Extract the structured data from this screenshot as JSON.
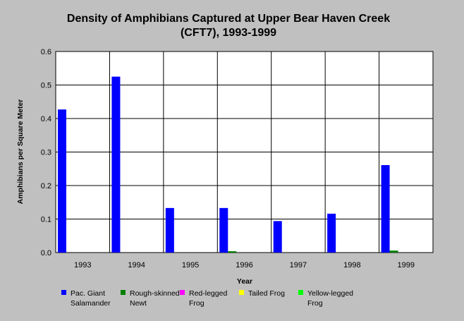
{
  "chart_data": {
    "type": "bar",
    "title_lines": [
      "Density of Amphibians Captured at Upper Bear Haven Creek",
      "(CFT7), 1993-1999"
    ],
    "xlabel": "Year",
    "ylabel": "Amphibians per Square Meter",
    "ylim": [
      0,
      0.6
    ],
    "yticks": [
      "0.0",
      "0.1",
      "0.2",
      "0.3",
      "0.4",
      "0.5",
      "0.6"
    ],
    "categories": [
      "1993",
      "1994",
      "1995",
      "1996",
      "1997",
      "1998",
      "1999"
    ],
    "grid": true,
    "legend_position": "bottom",
    "series": [
      {
        "name_lines": [
          "Pac. Giant",
          "Salamander"
        ],
        "color": "#0000ff",
        "values": [
          0.427,
          0.525,
          0.133,
          0.133,
          0.094,
          0.116,
          0.261
        ]
      },
      {
        "name_lines": [
          "Rough-skinned",
          "Newt"
        ],
        "color": "#008000",
        "values": [
          0,
          0,
          0,
          0.004,
          0,
          0,
          0.006
        ]
      },
      {
        "name_lines": [
          "Red-legged",
          "Frog"
        ],
        "color": "#ff00ff",
        "values": [
          0,
          0,
          0,
          0,
          0,
          0,
          0
        ]
      },
      {
        "name_lines": [
          "Tailed Frog"
        ],
        "color": "#ffff00",
        "values": [
          0,
          0,
          0,
          0,
          0,
          0,
          0
        ]
      },
      {
        "name_lines": [
          "Yellow-legged",
          "Frog"
        ],
        "color": "#00ff00",
        "values": [
          0,
          0,
          0,
          0,
          0,
          0,
          0
        ]
      }
    ]
  }
}
